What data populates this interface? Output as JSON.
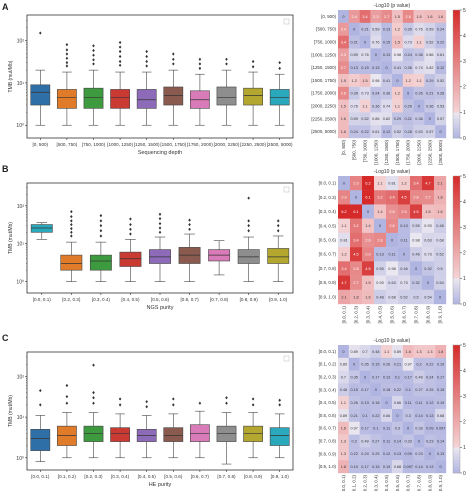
{
  "panels": [
    {
      "label": "A",
      "box": {
        "type": "box",
        "xlabel": "Sequencing depth",
        "ylabel": "TMB (mut/Mb)",
        "yscale": "log",
        "ylim": [
          0.5,
          400
        ],
        "yticks": [
          {
            "v": 1,
            "t": "10⁰"
          },
          {
            "v": 10,
            "t": "10¹"
          },
          {
            "v": 100,
            "t": "10²"
          }
        ],
        "categories": [
          "[0, 500)",
          "[500, 750)",
          "[750, 1000)",
          "[1000, 1250)",
          "[1250, 1500)",
          "[1500, 1750)",
          "[1750, 2000)",
          "[2000, 2250)",
          "[2250, 2500)",
          "[2500, 5000)"
        ],
        "colors": [
          "#2f6fa7",
          "#e07b2a",
          "#3d9a3f",
          "#c83a32",
          "#8d6bb8",
          "#8a5a4e",
          "#d97bb8",
          "#8e8e8e",
          "#b3a72f",
          "#2aa9bd"
        ],
        "stats": [
          {
            "whislo": 1.0,
            "q1": 3.0,
            "med": 6.0,
            "q3": 9.0,
            "whishi": 20,
            "fliers": [
              150
            ]
          },
          {
            "whislo": 1.0,
            "q1": 2.5,
            "med": 4.5,
            "q3": 7.0,
            "whishi": 18,
            "fliers": [
              25,
              30,
              38,
              48,
              60,
              80
            ]
          },
          {
            "whislo": 1.0,
            "q1": 2.5,
            "med": 4.5,
            "q3": 7.5,
            "whishi": 20,
            "fliers": [
              28,
              35,
              45,
              58,
              75
            ]
          },
          {
            "whislo": 1.0,
            "q1": 2.5,
            "med": 4.5,
            "q3": 7.0,
            "whishi": 18,
            "fliers": [
              26,
              32,
              42,
              55,
              70,
              90
            ]
          },
          {
            "whislo": 1.0,
            "q1": 2.5,
            "med": 4.0,
            "q3": 7.0,
            "whishi": 18,
            "fliers": [
              25,
              32,
              42,
              55
            ]
          },
          {
            "whislo": 1.0,
            "q1": 3.0,
            "med": 5.0,
            "q3": 8.0,
            "whishi": 20,
            "fliers": [
              28,
              36,
              48
            ]
          },
          {
            "whislo": 1.0,
            "q1": 2.5,
            "med": 4.0,
            "q3": 6.5,
            "whishi": 16,
            "fliers": [
              22,
              28,
              36
            ]
          },
          {
            "whislo": 1.0,
            "q1": 3.0,
            "med": 4.5,
            "q3": 8.0,
            "whishi": 20,
            "fliers": [
              28,
              36
            ]
          },
          {
            "whislo": 1.0,
            "q1": 3.0,
            "med": 5.0,
            "q3": 7.5,
            "whishi": 18,
            "fliers": [
              24,
              32
            ]
          },
          {
            "whislo": 1.0,
            "q1": 3.0,
            "med": 4.5,
            "q3": 7.0,
            "whishi": 16,
            "fliers": [
              22,
              30
            ]
          }
        ]
      },
      "heatmap": {
        "type": "heatmap",
        "title": "-Log10 (p value)",
        "labels": [
          "[0, 500)",
          "[500, 750)",
          "[750, 1000)",
          "[1000, 1250)",
          "[1250, 1500)",
          "[1500, 1750)",
          "[1750, 2000)",
          "[2000, 2250)",
          "[2250, 2500)",
          "[2500, 5000)"
        ],
        "values": [
          [
            0,
            2.4,
            3.4,
            2.3,
            2.7,
            1.5,
            2.8,
            1.5,
            1.6,
            1.6
          ],
          [
            2.4,
            0,
            0.21,
            0.59,
            0.13,
            1.2,
            0.39,
            0.76,
            0.59,
            0.24
          ],
          [
            3.4,
            0.21,
            0,
            0.76,
            0.15,
            1.5,
            0.73,
            1.1,
            0.52,
            0.22
          ],
          [
            2.3,
            0.59,
            0.76,
            0,
            0.13,
            0.98,
            0.24,
            0.36,
            0.86,
            0.61
          ],
          [
            2.7,
            0.13,
            0.15,
            0.13,
            0,
            0.41,
            0.36,
            0.74,
            0.82,
            0.12
          ],
          [
            1.5,
            1.2,
            1.5,
            0.98,
            0.41,
            0,
            1.2,
            1.1,
            0.29,
            0.52
          ],
          [
            2.8,
            0.39,
            0.73,
            0.24,
            0.36,
            1.2,
            0,
            0.26,
            0.21,
            0.28
          ],
          [
            1.5,
            0.76,
            1.1,
            0.36,
            0.74,
            1.1,
            0.26,
            0,
            0.36,
            0.53
          ],
          [
            1.6,
            0.59,
            0.52,
            0.86,
            0.82,
            0.29,
            0.21,
            0.36,
            0,
            0.57
          ],
          [
            1.6,
            0.24,
            0.22,
            0.61,
            0.12,
            0.52,
            0.28,
            0.53,
            0.57,
            0
          ]
        ],
        "colorbar": {
          "min": 0,
          "max": 5,
          "ticks": [
            "0",
            "1",
            "2",
            "3",
            "4",
            "5"
          ]
        }
      }
    },
    {
      "label": "B",
      "box": {
        "type": "box",
        "xlabel": "NGS purity",
        "ylabel": "TMB (mut/Mb)",
        "yscale": "log",
        "ylim": [
          0.5,
          400
        ],
        "yticks": [
          {
            "v": 1,
            "t": "10⁰"
          },
          {
            "v": 10,
            "t": "10¹"
          },
          {
            "v": 100,
            "t": "10²"
          }
        ],
        "categories": [
          "[0.0, 0.1)",
          "[0.2, 0.3)",
          "[0.3, 0.4)",
          "[0.4, 0.5)",
          "[0.5, 0.6)",
          "[0.6, 0.7)",
          "[0.7, 0.8)",
          "[0.8, 0.9)",
          "[0.9, 1.0)"
        ],
        "colors": [
          "#2aa9bd",
          "#e07b2a",
          "#3d9a3f",
          "#c83a32",
          "#8d6bb8",
          "#8a5a4e",
          "#d97bb8",
          "#8e8e8e",
          "#b3a72f"
        ],
        "stats": [
          {
            "whislo": 13,
            "q1": 20,
            "med": 26,
            "q3": 32,
            "whishi": 36,
            "fliers": []
          },
          {
            "whislo": 1.0,
            "q1": 2.0,
            "med": 3.0,
            "q3": 5.0,
            "whishi": 11,
            "fliers": [
              16,
              20,
              25,
              32,
              40,
              52,
              70
            ]
          },
          {
            "whislo": 1.0,
            "q1": 2.0,
            "med": 3.5,
            "q3": 5.0,
            "whishi": 11,
            "fliers": [
              16,
              22,
              30,
              40,
              55
            ]
          },
          {
            "whislo": 1.0,
            "q1": 2.5,
            "med": 4.0,
            "q3": 6.0,
            "whishi": 13,
            "fliers": [
              18,
              24,
              32,
              45
            ]
          },
          {
            "whislo": 1.0,
            "q1": 3.0,
            "med": 4.5,
            "q3": 7.0,
            "whishi": 15,
            "fliers": [
              20,
              26,
              34,
              46,
              60
            ]
          },
          {
            "whislo": 1.0,
            "q1": 3.0,
            "med": 5.0,
            "q3": 8.0,
            "whishi": 18,
            "fliers": [
              24,
              32,
              42
            ]
          },
          {
            "whislo": 1.5,
            "q1": 3.5,
            "med": 5.0,
            "q3": 7.0,
            "whishi": 12,
            "fliers": []
          },
          {
            "whislo": 1.0,
            "q1": 3.0,
            "med": 4.5,
            "q3": 7.0,
            "whishi": 15,
            "fliers": [
              22,
              30,
              40,
              160
            ]
          },
          {
            "whislo": 1.0,
            "q1": 3.0,
            "med": 4.5,
            "q3": 7.5,
            "whishi": 16,
            "fliers": [
              22,
              30,
              40
            ]
          }
        ]
      },
      "heatmap": {
        "type": "heatmap",
        "title": "-Log10 (p value)",
        "labels": [
          "[0.0, 0.1)",
          "[0.2, 0.3)",
          "[0.3, 0.4)",
          "[0.4, 0.5)",
          "[0.5, 0.6)",
          "[0.6, 0.7)",
          "[0.7, 0.8)",
          "[0.8, 0.9)",
          "[0.9, 1.0)"
        ],
        "values": [
          [
            0,
            2.9,
            6.2,
            1.1,
            0.81,
            1.2,
            3.4,
            4.7,
            2.1
          ],
          [
            2.9,
            0,
            6.1,
            3.2,
            3.4,
            4.5,
            2.8,
            2.7,
            1.8
          ],
          [
            6.2,
            6.1,
            0,
            1.4,
            2.6,
            2.9,
            4.5,
            1.5,
            1.6
          ],
          [
            1.1,
            3.2,
            1.4,
            0,
            2.8,
            0.13,
            0.55,
            0.93,
            0.48
          ],
          [
            0.81,
            3.4,
            2.6,
            2.8,
            0,
            0.11,
            0.98,
            0.63,
            0.68
          ],
          [
            1.2,
            4.5,
            2.9,
            0.13,
            0.11,
            0,
            0.46,
            0.73,
            0.52
          ],
          [
            3.4,
            2.8,
            4.5,
            0.55,
            0.98,
            0.46,
            0,
            0.32,
            0.5
          ],
          [
            4.7,
            2.7,
            1.5,
            0.93,
            0.63,
            0.73,
            0.32,
            0,
            0.54
          ],
          [
            2.1,
            1.8,
            1.6,
            0.48,
            0.68,
            0.52,
            0.5,
            0.54,
            0
          ]
        ],
        "colorbar": {
          "min": 0,
          "max": 5,
          "ticks": [
            "0",
            "1",
            "2",
            "3",
            "4",
            "5"
          ]
        }
      }
    },
    {
      "label": "C",
      "box": {
        "type": "box",
        "xlabel": "HE purity",
        "ylabel": "TMB (mut/Mb)",
        "yscale": "log",
        "ylim": [
          0.5,
          400
        ],
        "yticks": [
          {
            "v": 1,
            "t": "10⁰"
          },
          {
            "v": 10,
            "t": "10¹"
          },
          {
            "v": 100,
            "t": "10²"
          }
        ],
        "categories": [
          "[0.0, 0.1)",
          "[0.1, 0.2)",
          "[0.2, 0.3)",
          "[0.3, 0.4)",
          "[0.4, 0.5)",
          "[0.5, 0.6)",
          "[0.6, 0.7)",
          "[0.7, 0.8)",
          "[0.8, 0.9)",
          "[0.9, 1.0)"
        ],
        "colors": [
          "#2f6fa7",
          "#e07b2a",
          "#3d9a3f",
          "#c83a32",
          "#8d6bb8",
          "#8a5a4e",
          "#d97bb8",
          "#8e8e8e",
          "#b3a72f",
          "#2aa9bd"
        ],
        "stats": [
          {
            "whislo": 0.8,
            "q1": 1.5,
            "med": 3.0,
            "q3": 5.0,
            "whishi": 11,
            "fliers": [
              20,
              45
            ]
          },
          {
            "whislo": 1.0,
            "q1": 2.0,
            "med": 3.5,
            "q3": 6.0,
            "whishi": 13,
            "fliers": [
              22,
              32,
              60
            ]
          },
          {
            "whislo": 1.0,
            "q1": 2.5,
            "med": 4.0,
            "q3": 6.0,
            "whishi": 13,
            "fliers": [
              22,
              30,
              40,
              190
            ]
          },
          {
            "whislo": 1.0,
            "q1": 2.5,
            "med": 4.0,
            "q3": 5.5,
            "whishi": 12,
            "fliers": [
              20,
              28
            ]
          },
          {
            "whislo": 1.0,
            "q1": 2.5,
            "med": 3.5,
            "q3": 5.0,
            "whishi": 11,
            "fliers": [
              18,
              24
            ]
          },
          {
            "whislo": 1.0,
            "q1": 2.5,
            "med": 3.5,
            "q3": 5.5,
            "whishi": 12,
            "fliers": [
              20,
              28
            ]
          },
          {
            "whislo": 1.0,
            "q1": 2.5,
            "med": 4.0,
            "q3": 6.5,
            "whishi": 14,
            "fliers": [
              22
            ]
          },
          {
            "whislo": 0.7,
            "q1": 2.5,
            "med": 4.0,
            "q3": 6.0,
            "whishi": 13,
            "fliers": [
              22,
              30
            ]
          },
          {
            "whislo": 1.0,
            "q1": 2.5,
            "med": 4.0,
            "q3": 6.0,
            "whishi": 13,
            "fliers": [
              20,
              28
            ]
          },
          {
            "whislo": 1.0,
            "q1": 2.0,
            "med": 3.5,
            "q3": 5.5,
            "whishi": 12,
            "fliers": [
              20,
              26
            ]
          }
        ]
      },
      "heatmap": {
        "type": "heatmap",
        "title": "-Log10 (p value)",
        "labels": [
          "[0.0, 0.1)",
          "[0.1, 0.2)",
          "[0.2, 0.3)",
          "[0.3, 0.4)",
          "[0.4, 0.5)",
          "[0.5, 0.6)",
          "[0.6, 0.7)",
          "[0.7, 0.8)",
          "[0.8, 0.9)",
          "[0.9, 1.0)"
        ],
        "values": [
          [
            0,
            0.89,
            0.7,
            0.48,
            1.1,
            0.89,
            1.6,
            1.3,
            1.3,
            1.8
          ],
          [
            0.89,
            0,
            0.35,
            0.15,
            0.26,
            0.21,
            0.97,
            0.2,
            0.22,
            0.19
          ],
          [
            0.7,
            0.35,
            0,
            0.17,
            0.13,
            0.1,
            0.17,
            0.49,
            0.24,
            0.17
          ],
          [
            0.48,
            0.15,
            0.17,
            0,
            0.18,
            0.22,
            0.1,
            0.27,
            0.25,
            0.15
          ],
          [
            1.1,
            0.26,
            0.13,
            0.18,
            0,
            0.66,
            0.11,
            0.11,
            0.12,
            0.19
          ],
          [
            0.89,
            0.21,
            0.1,
            0.22,
            0.66,
            0,
            0.3,
            0.14,
            0.13,
            0.68
          ],
          [
            1.6,
            0.97,
            0.17,
            0.1,
            0.11,
            0.3,
            0,
            0.33,
            0.09,
            0.097
          ],
          [
            1.3,
            0.2,
            0.49,
            0.27,
            0.11,
            0.14,
            0.33,
            0,
            0.23,
            0.14
          ],
          [
            1.3,
            0.22,
            0.24,
            0.25,
            0.12,
            0.13,
            0.09,
            0.23,
            0,
            0.13
          ],
          [
            1.8,
            0.19,
            0.17,
            0.15,
            0.19,
            0.68,
            0.097,
            0.14,
            0.13,
            0
          ]
        ],
        "colorbar": {
          "min": 0,
          "max": 5,
          "ticks": [
            "0",
            "1",
            "2",
            "3",
            "4",
            "5"
          ]
        }
      }
    }
  ]
}
